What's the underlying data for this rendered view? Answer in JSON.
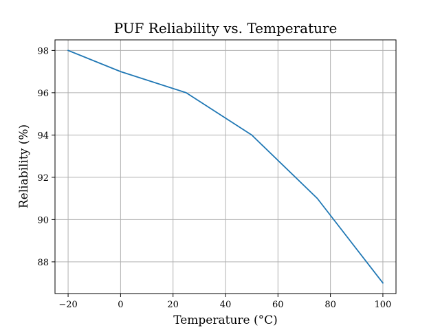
{
  "chart_data": {
    "type": "line",
    "title": "PUF Reliability vs. Temperature",
    "xlabel": "Temperature (°C)",
    "ylabel": "Reliability (%)",
    "x": [
      -20,
      0,
      25,
      50,
      75,
      100
    ],
    "series": [
      {
        "values": [
          98,
          97,
          96,
          94,
          91,
          87
        ],
        "color": "#1f77b4"
      }
    ],
    "xlim": [
      -25,
      105
    ],
    "ylim": [
      86.5,
      98.5
    ],
    "xticks": [
      -20,
      0,
      20,
      40,
      60,
      80,
      100
    ],
    "xtick_labels": [
      "−20",
      "0",
      "20",
      "40",
      "60",
      "80",
      "100"
    ],
    "yticks": [
      88,
      90,
      92,
      94,
      96,
      98
    ],
    "ytick_labels": [
      "88",
      "90",
      "92",
      "94",
      "96",
      "98"
    ],
    "grid": true
  }
}
